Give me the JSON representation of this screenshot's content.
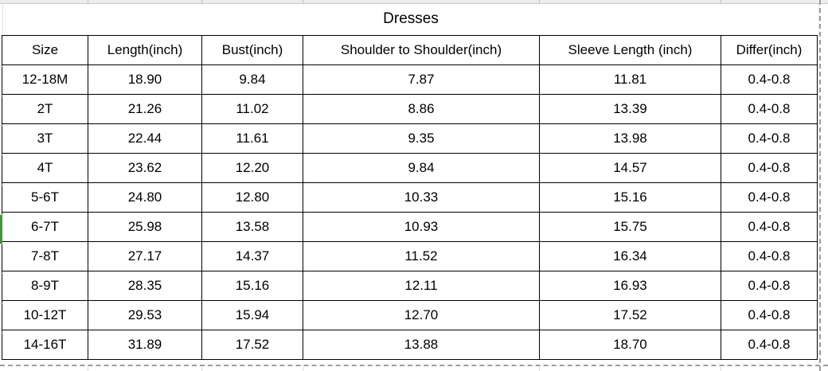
{
  "title": "Dresses",
  "table": {
    "columns": [
      "Size",
      "Length(inch)",
      "Bust(inch)",
      "Shoulder to Shoulder(inch)",
      "Sleeve Length (inch)",
      "Differ(inch)"
    ],
    "rows": [
      [
        "12-18M",
        "18.90",
        "9.84",
        "7.87",
        "11.81",
        "0.4-0.8"
      ],
      [
        "2T",
        "21.26",
        "11.02",
        "8.86",
        "13.39",
        "0.4-0.8"
      ],
      [
        "3T",
        "22.44",
        "11.61",
        "9.35",
        "13.98",
        "0.4-0.8"
      ],
      [
        "4T",
        "23.62",
        "12.20",
        "9.84",
        "14.57",
        "0.4-0.8"
      ],
      [
        "5-6T",
        "24.80",
        "12.80",
        "10.33",
        "15.16",
        "0.4-0.8"
      ],
      [
        "6-7T",
        "25.98",
        "13.58",
        "10.93",
        "15.75",
        "0.4-0.8"
      ],
      [
        "7-8T",
        "27.17",
        "14.37",
        "11.52",
        "16.34",
        "0.4-0.8"
      ],
      [
        "8-9T",
        "28.35",
        "15.16",
        "12.11",
        "16.93",
        "0.4-0.8"
      ],
      [
        "10-12T",
        "29.53",
        "15.94",
        "12.70",
        "17.52",
        "0.4-0.8"
      ],
      [
        "14-16T",
        "31.89",
        "17.52",
        "13.88",
        "18.70",
        "0.4-0.8"
      ]
    ]
  },
  "selection": {
    "row": "6-7T",
    "indicator_color": "#3F9735"
  },
  "colors": {
    "table_border": "#000000",
    "gridline": "#c9c9c9",
    "page_break_dash": "#9c9c9c",
    "background": "#ffffff"
  }
}
